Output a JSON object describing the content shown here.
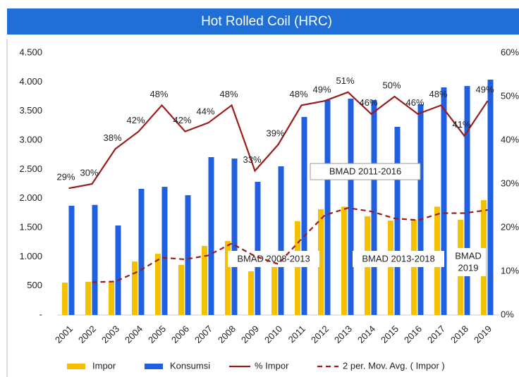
{
  "chart_data": {
    "type": "bar",
    "title": "Hot Rolled Coil (HRC)",
    "categories": [
      "2001",
      "2002",
      "2003",
      "2004",
      "2005",
      "2006",
      "2007",
      "2008",
      "2009",
      "2010",
      "2011",
      "2012",
      "2013",
      "2014",
      "2015",
      "2016",
      "2017",
      "2018",
      "2019"
    ],
    "series": [
      {
        "name": "Impor",
        "type": "bar",
        "color": "#f5c000",
        "values": [
          556,
          570,
          580,
          920,
          1050,
          860,
          1185,
          1270,
          750,
          1000,
          1610,
          1815,
          1860,
          1695,
          1620,
          1635,
          1860,
          1635,
          1970
        ]
      },
      {
        "name": "Konsumsi",
        "type": "bar",
        "color": "#1f5fe0",
        "values": [
          1875,
          1890,
          1536,
          2165,
          2200,
          2056,
          2710,
          2685,
          2286,
          2552,
          3400,
          3690,
          3714,
          3690,
          3230,
          3617,
          3907,
          3931,
          4040
        ]
      },
      {
        "name": "% Impor",
        "type": "line",
        "axis": "y2",
        "color": "#9b1c1c",
        "values": [
          29,
          30,
          38,
          42,
          48,
          42,
          44,
          48,
          33,
          39,
          48,
          49,
          51,
          46,
          50,
          46,
          48,
          41,
          49
        ],
        "value_labels": [
          "29%",
          "30%",
          "38%",
          "42%",
          "48%",
          "42%",
          "44%",
          "48%",
          "33%",
          "39%",
          "48%",
          "49%",
          "51%",
          "46%",
          "50%",
          "46%",
          "48%",
          "41%",
          "49%"
        ]
      },
      {
        "name": "2 per. Mov. Avg. ( Impor )",
        "type": "line",
        "dash": true,
        "color": "#9b1c1c",
        "values": [
          null,
          563,
          575,
          750,
          985,
          955,
          1023,
          1228,
          1010,
          875,
          1305,
          1713,
          1838,
          1778,
          1658,
          1628,
          1748,
          1748,
          1803
        ]
      }
    ],
    "ylim": [
      0,
      4500
    ],
    "yticks": [
      {
        "value": 0,
        "label": "-"
      },
      {
        "value": 500,
        "label": "500"
      },
      {
        "value": 1000,
        "label": "1.000"
      },
      {
        "value": 1500,
        "label": "1.500"
      },
      {
        "value": 2000,
        "label": "2.000"
      },
      {
        "value": 2500,
        "label": "2.500"
      },
      {
        "value": 3000,
        "label": "3.000"
      },
      {
        "value": 3500,
        "label": "3.500"
      },
      {
        "value": 4000,
        "label": "4.000"
      },
      {
        "value": 4500,
        "label": "4.500"
      }
    ],
    "y2lim": [
      0,
      60
    ],
    "y2ticks": [
      {
        "value": 0,
        "label": "0%"
      },
      {
        "value": 10,
        "label": "10%"
      },
      {
        "value": 20,
        "label": "20%"
      },
      {
        "value": 30,
        "label": "30%"
      },
      {
        "value": 40,
        "label": "40%"
      },
      {
        "value": 50,
        "label": "50%"
      },
      {
        "value": 60,
        "label": "60%"
      }
    ],
    "annotations": [
      {
        "lines": [
          "BMAD 2011-2016"
        ]
      },
      {
        "lines": [
          "BMAD 2008-2013"
        ]
      },
      {
        "lines": [
          "BMAD 2013-2018"
        ]
      },
      {
        "lines": [
          "BMAD",
          "2019"
        ]
      }
    ]
  }
}
